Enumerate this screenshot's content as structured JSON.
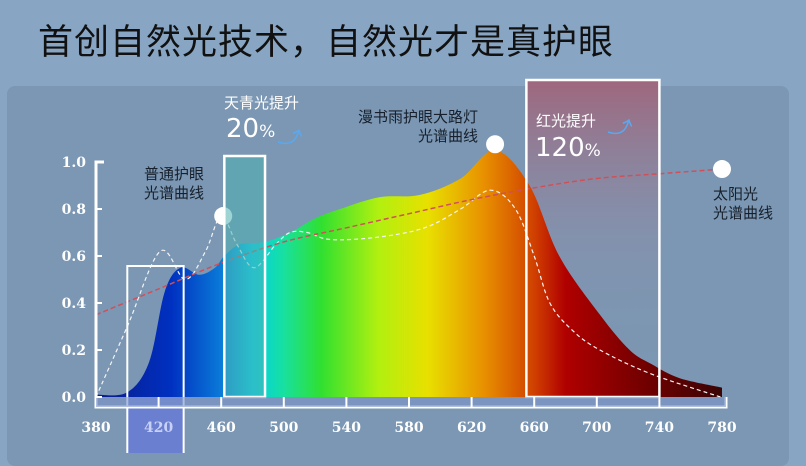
{
  "title": "首创自然光技术，自然光才是真护眼",
  "annotations": {
    "cyan_boost_label": "天青光提升",
    "cyan_boost_value": "20",
    "red_boost_label": "红光提升",
    "red_boost_value": "120",
    "percent_sign": "%",
    "normal_curve_line1": "普通护眼",
    "normal_curve_line2": "光谱曲线",
    "product_curve_line1": "漫书雨护眼大路灯",
    "product_curve_line2": "光谱曲线",
    "sun_curve_line1": "太阳光",
    "sun_curve_line2": "光谱曲线",
    "arrow_icon": "up-arrow-icon"
  },
  "colors": {
    "page_bg": "#88a6c3",
    "panel_bg": "#7b97b3",
    "sun_curve": "#d0505a",
    "box_stroke": "#ffffff",
    "cyan_box": "#4fb0b0",
    "red_box": "#a86a7c"
  },
  "chart_data": {
    "type": "area",
    "xlim": [
      380,
      780
    ],
    "ylim": [
      0,
      1.0
    ],
    "x_ticks": [
      "380",
      "420",
      "460",
      "500",
      "540",
      "580",
      "620",
      "660",
      "700",
      "740",
      "780"
    ],
    "y_ticks": [
      "0.0",
      "0.2",
      "0.4",
      "0.6",
      "0.8",
      "1.0"
    ],
    "grid": false,
    "highlight_ranges": [
      [
        400,
        436
      ],
      [
        462,
        488
      ],
      [
        655,
        740
      ]
    ],
    "series": [
      {
        "name": "漫书雨护眼大路灯光谱曲线",
        "style": "gradient-area",
        "x": [
          380,
          400,
          414,
          424,
          434,
          446,
          456,
          462,
          472,
          488,
          504,
          520,
          536,
          561,
          587,
          613,
          635,
          657,
          676,
          702,
          721,
          735,
          753,
          780
        ],
        "y": [
          0.01,
          0.02,
          0.15,
          0.45,
          0.55,
          0.52,
          0.55,
          0.6,
          0.65,
          0.66,
          0.7,
          0.76,
          0.8,
          0.85,
          0.86,
          0.93,
          1.05,
          0.9,
          0.6,
          0.35,
          0.2,
          0.14,
          0.08,
          0.04
        ]
      },
      {
        "name": "普通护眼光谱曲线",
        "style": "white-dashed",
        "x": [
          380,
          400,
          421,
          437,
          450,
          460,
          470,
          481,
          495,
          504,
          515,
          530,
          560,
          590,
          613,
          632,
          648,
          660,
          670,
          685,
          702,
          734,
          779
        ],
        "y": [
          0.0,
          0.3,
          0.62,
          0.5,
          0.62,
          0.77,
          0.65,
          0.55,
          0.65,
          0.7,
          0.7,
          0.67,
          0.68,
          0.72,
          0.8,
          0.88,
          0.8,
          0.6,
          0.4,
          0.28,
          0.2,
          0.1,
          0.0
        ]
      },
      {
        "name": "太阳光光谱曲线",
        "style": "red-dashed",
        "x": [
          380,
          420,
          460,
          500,
          540,
          580,
          620,
          660,
          700,
          740,
          780
        ],
        "y": [
          0.35,
          0.46,
          0.57,
          0.66,
          0.72,
          0.78,
          0.84,
          0.89,
          0.93,
          0.95,
          0.97
        ]
      }
    ]
  }
}
